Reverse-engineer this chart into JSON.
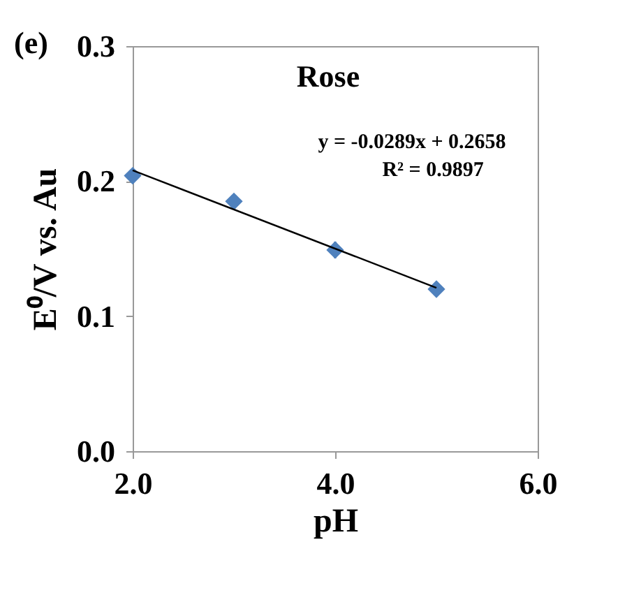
{
  "chart_data": {
    "type": "scatter",
    "xlabel": "pH",
    "ylabel": "E⁰/V vs. Au",
    "annotations": [
      "(e)",
      "Rose",
      "y = -0.0289x + 0.2658",
      "R² = 0.9897"
    ],
    "x": [
      2,
      3,
      4,
      5
    ],
    "series": [
      {
        "color": "#4f81bd",
        "values": [
          0.204,
          0.185,
          0.149,
          0.12
        ],
        "errors": [
          0.003,
          0.005,
          0.006,
          0.003
        ],
        "marker": "diamond"
      },
      {
        "type": "line",
        "color": "#000000",
        "x": [
          2,
          5
        ],
        "values": [
          0.208,
          0.121
        ],
        "marker": "none",
        "line_style": "solid"
      }
    ],
    "xlim": [
      2,
      6
    ],
    "xticks": [
      {
        "value": 2,
        "label": "2.0"
      },
      {
        "value": 4,
        "label": "4.0"
      },
      {
        "value": 6,
        "label": "6.0"
      }
    ],
    "ylim": [
      0,
      0.3
    ],
    "yticks": [
      {
        "value": 0,
        "label": "0.0"
      },
      {
        "value": 0.1,
        "label": "0.1"
      },
      {
        "value": 0.2,
        "label": "0.2"
      },
      {
        "value": 0.3,
        "label": "0.3"
      }
    ],
    "grid": false
  }
}
